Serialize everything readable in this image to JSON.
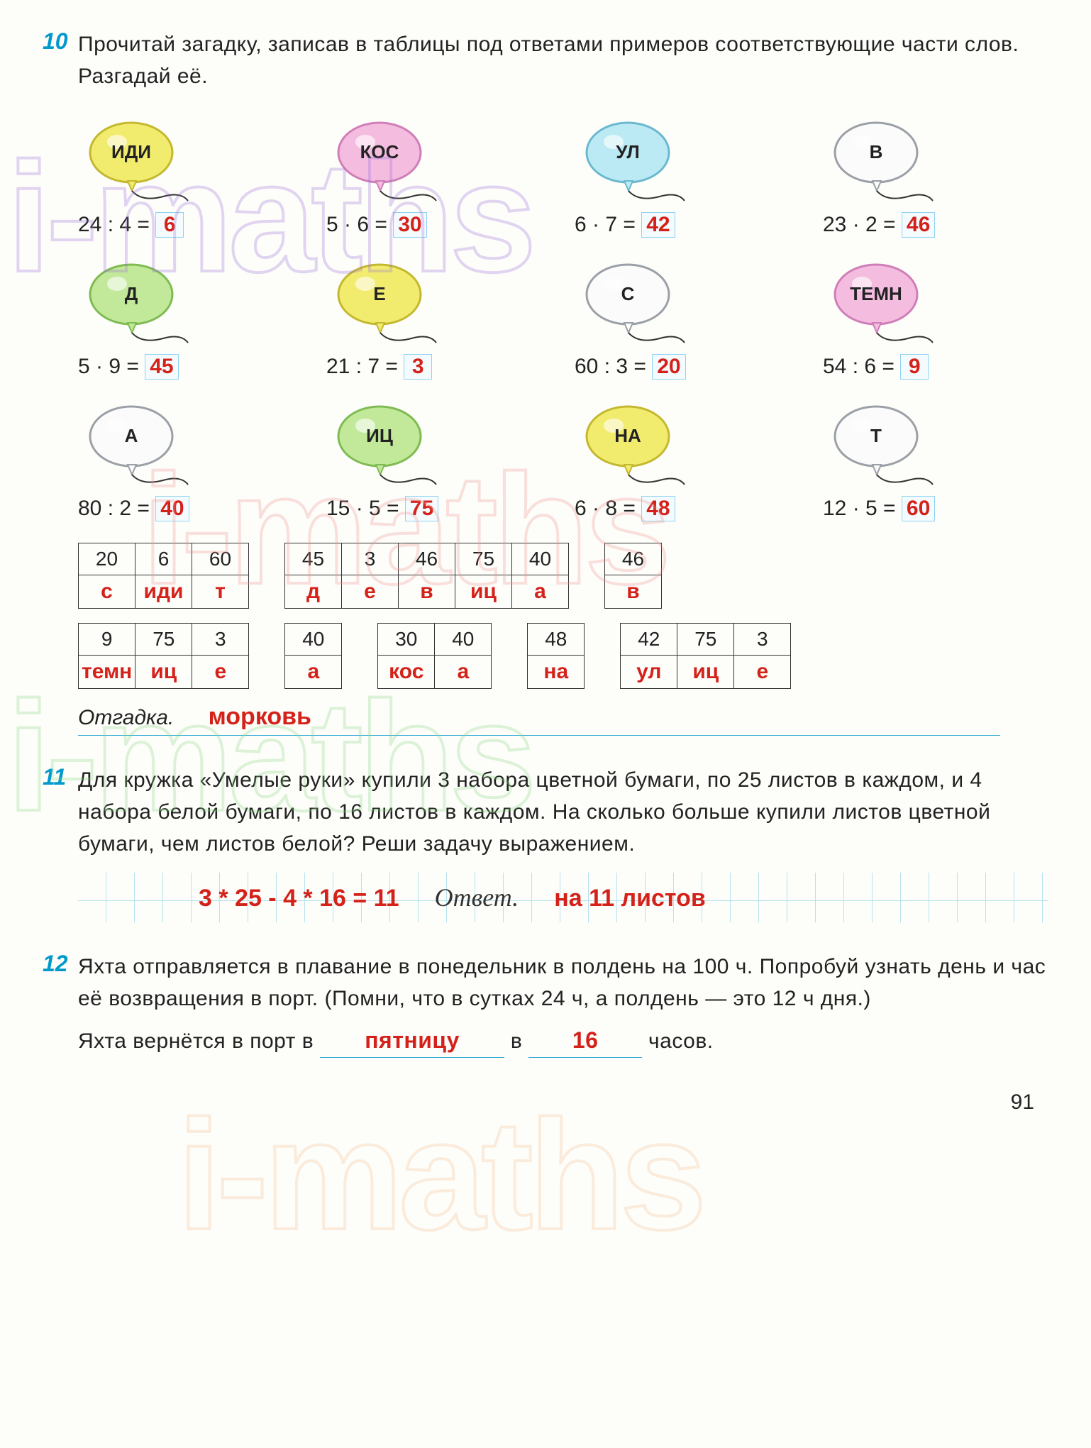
{
  "page_number": "91",
  "watermark_text": "i-maths",
  "task10": {
    "number": "10",
    "text": "Прочитай загадку, записав в таблицы под ответами примеров соответствующие части слов. Разгадай её.",
    "balloons": [
      [
        {
          "label": "ИДИ",
          "fill": "#f2ec6e",
          "stroke": "#c4b82f",
          "eq": "24 : 4 =",
          "ans": "6"
        },
        {
          "label": "КОС",
          "fill": "#f4bde0",
          "stroke": "#cf7eb8",
          "eq": "5 · 6 =",
          "ans": "30"
        },
        {
          "label": "УЛ",
          "fill": "#bceaf4",
          "stroke": "#6ab9cf",
          "eq": "6 · 7 =",
          "ans": "42"
        },
        {
          "label": "В",
          "fill": "#fbfbfb",
          "stroke": "#9aa0a6",
          "eq": "23 · 2 =",
          "ans": "46"
        }
      ],
      [
        {
          "label": "Д",
          "fill": "#c2e99a",
          "stroke": "#7fbb52",
          "eq": "5 · 9 =",
          "ans": "45"
        },
        {
          "label": "Е",
          "fill": "#f2ec6e",
          "stroke": "#c4b82f",
          "eq": "21 : 7 =",
          "ans": "3"
        },
        {
          "label": "С",
          "fill": "#fbfbfb",
          "stroke": "#9aa0a6",
          "eq": "60 : 3 =",
          "ans": "20"
        },
        {
          "label": "ТЕМН",
          "fill": "#f4bde0",
          "stroke": "#cf7eb8",
          "eq": "54 : 6 =",
          "ans": "9"
        }
      ],
      [
        {
          "label": "А",
          "fill": "#fbfbfb",
          "stroke": "#9aa0a6",
          "eq": "80 : 2 =",
          "ans": "40"
        },
        {
          "label": "ИЦ",
          "fill": "#c2e99a",
          "stroke": "#7fbb52",
          "eq": "15 · 5 =",
          "ans": "75"
        },
        {
          "label": "НА",
          "fill": "#f2ec6e",
          "stroke": "#c4b82f",
          "eq": "6 · 8 =",
          "ans": "48"
        },
        {
          "label": "Т",
          "fill": "#fbfbfb",
          "stroke": "#9aa0a6",
          "eq": "12 · 5 =",
          "ans": "60"
        }
      ]
    ],
    "tables_row1": [
      {
        "nums": [
          "20",
          "6",
          "60"
        ],
        "words": [
          "с",
          "иди",
          "т"
        ]
      },
      {
        "nums": [
          "45",
          "3",
          "46",
          "75",
          "40"
        ],
        "words": [
          "д",
          "е",
          "в",
          "иц",
          "а"
        ]
      },
      {
        "nums": [
          "46"
        ],
        "words": [
          "в"
        ]
      }
    ],
    "tables_row2": [
      {
        "nums": [
          "9",
          "75",
          "3"
        ],
        "words": [
          "темн",
          "иц",
          "е"
        ]
      },
      {
        "nums": [
          "40"
        ],
        "words": [
          "а"
        ]
      },
      {
        "nums": [
          "30",
          "40"
        ],
        "words": [
          "кос",
          "а"
        ]
      },
      {
        "nums": [
          "48"
        ],
        "words": [
          "на"
        ]
      },
      {
        "nums": [
          "42",
          "75",
          "3"
        ],
        "words": [
          "ул",
          "иц",
          "е"
        ]
      }
    ],
    "otgadka_label": "Отгадка.",
    "otgadka_answer": "морковь"
  },
  "task11": {
    "number": "11",
    "text": "Для кружка «Умелые руки» купили 3 набора цветной бумаги, по 25 листов в каждом, и 4 набора белой бумаги, по 16 листов в каждом. На сколько больше купили листов цветной бумаги, чем листов белой? Реши задачу выражением.",
    "expression": "3 * 25 - 4 * 16 = 11",
    "answer_label": "Ответ.",
    "answer_value": "на 11 листов"
  },
  "task12": {
    "number": "12",
    "text_part1": "Яхта отправляется в плавание в понедельник в полдень на 100 ч. Попробуй узнать день и час её возвращения в порт. (Помни, что в сутках 24 ч, а полдень — это 12 ч дня.)",
    "line2_prefix": "Яхта вернётся в порт в",
    "day_answer": "пятницу",
    "mid_text": "в",
    "hour_answer": "16",
    "suffix": "часов."
  }
}
